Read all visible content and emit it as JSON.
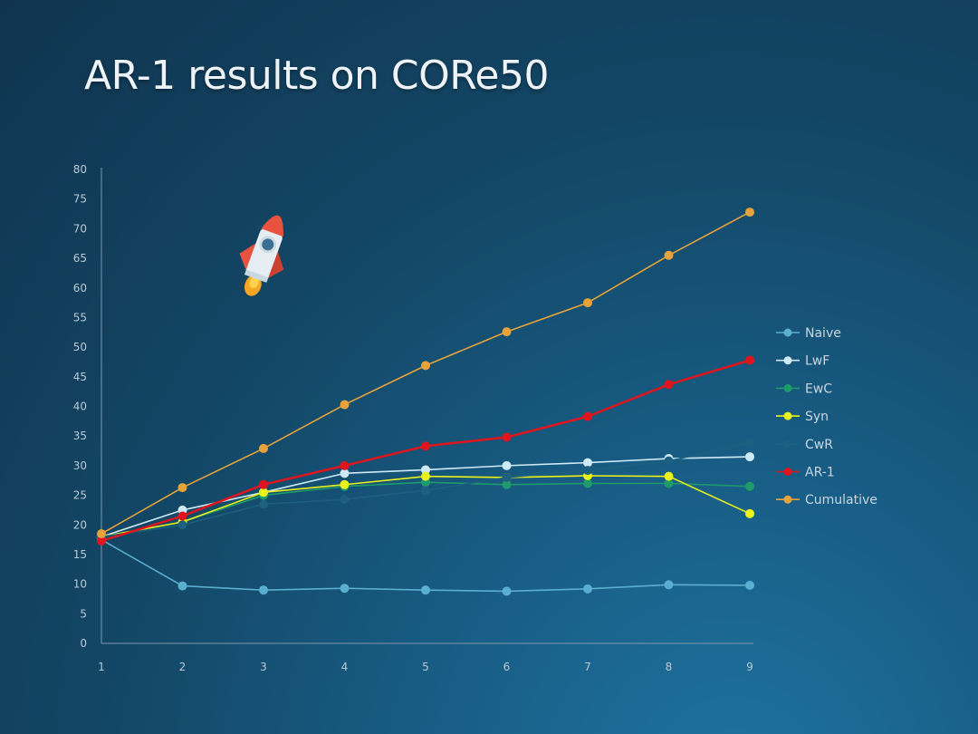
{
  "title": "AR-1 results on CORe50",
  "colors": {
    "Naive": "#5aaed0",
    "LwF": "#cfeaf7",
    "EwC": "#1f9a6a",
    "Syn": "#eaf21a",
    "CwR": "#1d5f7e",
    "AR-1": "#e0141c",
    "Cumulative": "#e8a23a"
  },
  "chart_data": {
    "type": "line",
    "x": [
      1,
      2,
      3,
      4,
      5,
      6,
      7,
      8,
      9
    ],
    "xlabel": "",
    "ylabel": "",
    "ylim": [
      0,
      80
    ],
    "yticks": [
      0,
      5,
      10,
      15,
      20,
      25,
      30,
      35,
      40,
      45,
      50,
      55,
      60,
      65,
      70,
      75,
      80
    ],
    "grid": false,
    "legend_position": "right",
    "series": [
      {
        "name": "Naive",
        "values": [
          17.5,
          9.7,
          9.0,
          9.3,
          9.0,
          8.8,
          9.2,
          9.9,
          9.8
        ]
      },
      {
        "name": "LwF",
        "values": [
          18.0,
          22.5,
          25.5,
          28.7,
          29.3,
          30.0,
          30.5,
          31.2,
          31.5
        ]
      },
      {
        "name": "EwC",
        "values": [
          18.0,
          20.5,
          25.0,
          26.5,
          27.2,
          26.8,
          27.0,
          27.0,
          26.5
        ]
      },
      {
        "name": "Syn",
        "values": [
          18.0,
          20.5,
          25.5,
          26.8,
          28.2,
          28.0,
          28.3,
          28.2,
          21.9
        ]
      },
      {
        "name": "CwR",
        "values": [
          18.0,
          20.0,
          23.5,
          24.3,
          25.8,
          28.0,
          29.2,
          30.8,
          33.8
        ]
      },
      {
        "name": "AR-1",
        "values": [
          17.3,
          21.5,
          26.8,
          30.0,
          33.3,
          34.8,
          38.3,
          43.7,
          47.8
        ]
      },
      {
        "name": "Cumulative",
        "values": [
          18.5,
          26.3,
          32.9,
          40.3,
          46.9,
          52.6,
          57.5,
          65.5,
          72.8
        ]
      }
    ]
  }
}
